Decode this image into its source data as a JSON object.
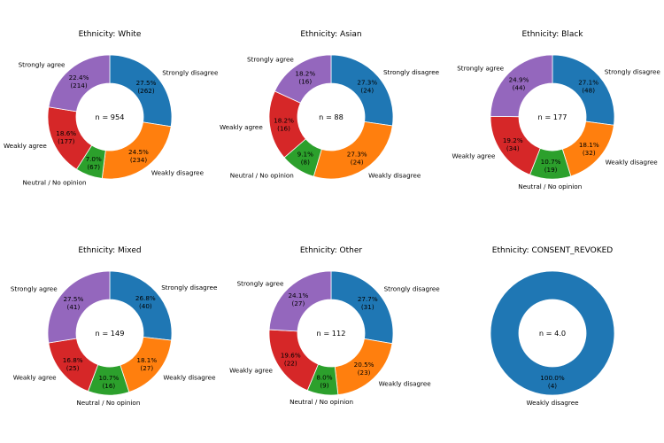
{
  "colors": {
    "Strongly disagree": "#1f77b4",
    "Weakly disagree": "#ff7f0e",
    "Neutral / No opinion": "#2ca02c",
    "Weakly agree": "#d62728",
    "Strongly agree": "#9467bd"
  },
  "chart_data": [
    {
      "type": "pie",
      "title": "Ethnicity: White",
      "center_label": "n = 954",
      "slices": [
        {
          "label": "Strongly disagree",
          "pct_text": "27.5%",
          "count_text": "(262)",
          "value": 262
        },
        {
          "label": "Weakly disagree",
          "pct_text": "24.5%",
          "count_text": "(234)",
          "value": 234
        },
        {
          "label": "Neutral / No opinion",
          "pct_text": "7.0%",
          "count_text": "(67)",
          "value": 67
        },
        {
          "label": "Weakly agree",
          "pct_text": "18.6%",
          "count_text": "(177)",
          "value": 177
        },
        {
          "label": "Strongly agree",
          "pct_text": "22.4%",
          "count_text": "(214)",
          "value": 214
        }
      ]
    },
    {
      "type": "pie",
      "title": "Ethnicity: Asian",
      "center_label": "n = 88",
      "slices": [
        {
          "label": "Strongly disagree",
          "pct_text": "27.3%",
          "count_text": "(24)",
          "value": 24
        },
        {
          "label": "Weakly disagree",
          "pct_text": "27.3%",
          "count_text": "(24)",
          "value": 24
        },
        {
          "label": "Neutral / No opinion",
          "pct_text": "9.1%",
          "count_text": "(8)",
          "value": 8
        },
        {
          "label": "Weakly agree",
          "pct_text": "18.2%",
          "count_text": "(16)",
          "value": 16
        },
        {
          "label": "Strongly agree",
          "pct_text": "18.2%",
          "count_text": "(16)",
          "value": 16
        }
      ]
    },
    {
      "type": "pie",
      "title": "Ethnicity: Black",
      "center_label": "n = 177",
      "slices": [
        {
          "label": "Strongly disagree",
          "pct_text": "27.1%",
          "count_text": "(48)",
          "value": 48
        },
        {
          "label": "Weakly disagree",
          "pct_text": "18.1%",
          "count_text": "(32)",
          "value": 32
        },
        {
          "label": "Neutral / No opinion",
          "pct_text": "10.7%",
          "count_text": "(19)",
          "value": 19
        },
        {
          "label": "Weakly agree",
          "pct_text": "19.2%",
          "count_text": "(34)",
          "value": 34
        },
        {
          "label": "Strongly agree",
          "pct_text": "24.9%",
          "count_text": "(44)",
          "value": 44
        }
      ]
    },
    {
      "type": "pie",
      "title": "Ethnicity: Mixed",
      "center_label": "n = 149",
      "slices": [
        {
          "label": "Strongly disagree",
          "pct_text": "26.8%",
          "count_text": "(40)",
          "value": 40
        },
        {
          "label": "Weakly disagree",
          "pct_text": "18.1%",
          "count_text": "(27)",
          "value": 27
        },
        {
          "label": "Neutral / No opinion",
          "pct_text": "10.7%",
          "count_text": "(16)",
          "value": 16
        },
        {
          "label": "Weakly agree",
          "pct_text": "16.8%",
          "count_text": "(25)",
          "value": 25
        },
        {
          "label": "Strongly agree",
          "pct_text": "27.5%",
          "count_text": "(41)",
          "value": 41
        }
      ]
    },
    {
      "type": "pie",
      "title": "Ethnicity: Other",
      "center_label": "n = 112",
      "slices": [
        {
          "label": "Strongly disagree",
          "pct_text": "27.7%",
          "count_text": "(31)",
          "value": 31
        },
        {
          "label": "Weakly disagree",
          "pct_text": "20.5%",
          "count_text": "(23)",
          "value": 23
        },
        {
          "label": "Neutral / No opinion",
          "pct_text": "8.0%",
          "count_text": "(9)",
          "value": 9
        },
        {
          "label": "Weakly agree",
          "pct_text": "19.6%",
          "count_text": "(22)",
          "value": 22
        },
        {
          "label": "Strongly agree",
          "pct_text": "24.1%",
          "count_text": "(27)",
          "value": 27
        }
      ]
    },
    {
      "type": "pie",
      "title": "Ethnicity: CONSENT_REVOKED",
      "center_label": "n = 4.0",
      "slices": [
        {
          "label": "Weakly disagree",
          "pct_text": "100.0%",
          "count_text": "(4)",
          "value": 4,
          "color_key": "Strongly disagree"
        }
      ]
    }
  ]
}
